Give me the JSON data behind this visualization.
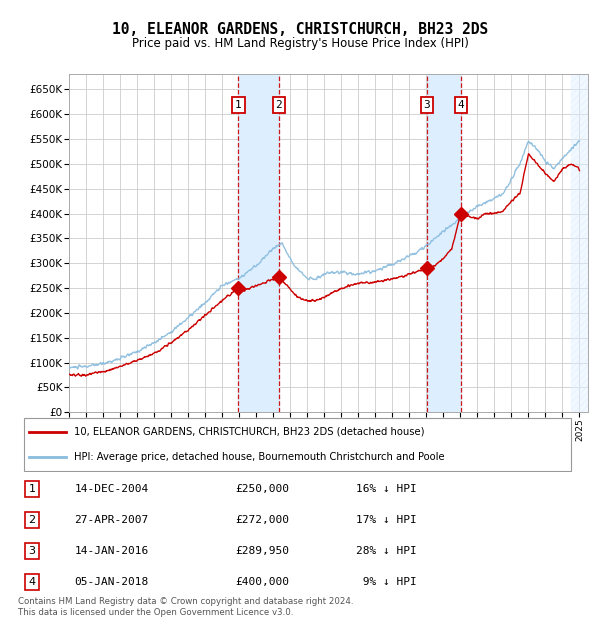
{
  "title": "10, ELEANOR GARDENS, CHRISTCHURCH, BH23 2DS",
  "subtitle": "Price paid vs. HM Land Registry's House Price Index (HPI)",
  "ytick_values": [
    0,
    50000,
    100000,
    150000,
    200000,
    250000,
    300000,
    350000,
    400000,
    450000,
    500000,
    550000,
    600000,
    650000
  ],
  "ylim": [
    0,
    680000
  ],
  "xlim_start": 1995.0,
  "xlim_end": 2025.5,
  "sales": [
    {
      "label": "1",
      "date_num": 2004.96,
      "price": 250000
    },
    {
      "label": "2",
      "date_num": 2007.33,
      "price": 272000
    },
    {
      "label": "3",
      "date_num": 2016.04,
      "price": 289950
    },
    {
      "label": "4",
      "date_num": 2018.02,
      "price": 400000
    }
  ],
  "sale_labels": [
    {
      "num": "1",
      "date": "14-DEC-2004",
      "price": "£250,000",
      "hpi": "16% ↓ HPI"
    },
    {
      "num": "2",
      "date": "27-APR-2007",
      "price": "£272,000",
      "hpi": "17% ↓ HPI"
    },
    {
      "num": "3",
      "date": "14-JAN-2016",
      "price": "£289,950",
      "hpi": "28% ↓ HPI"
    },
    {
      "num": "4",
      "date": "05-JAN-2018",
      "price": "£400,000",
      "hpi": " 9% ↓ HPI"
    }
  ],
  "legend_line1": "10, ELEANOR GARDENS, CHRISTCHURCH, BH23 2DS (detached house)",
  "legend_line2": "HPI: Average price, detached house, Bournemouth Christchurch and Poole",
  "footer": "Contains HM Land Registry data © Crown copyright and database right 2024.\nThis data is licensed under the Open Government Licence v3.0.",
  "sale_color": "#cc0000",
  "hpi_color": "#88bbdd",
  "bg_color": "#ffffff",
  "grid_color": "#cccccc",
  "shade_color": "#ddeeff"
}
